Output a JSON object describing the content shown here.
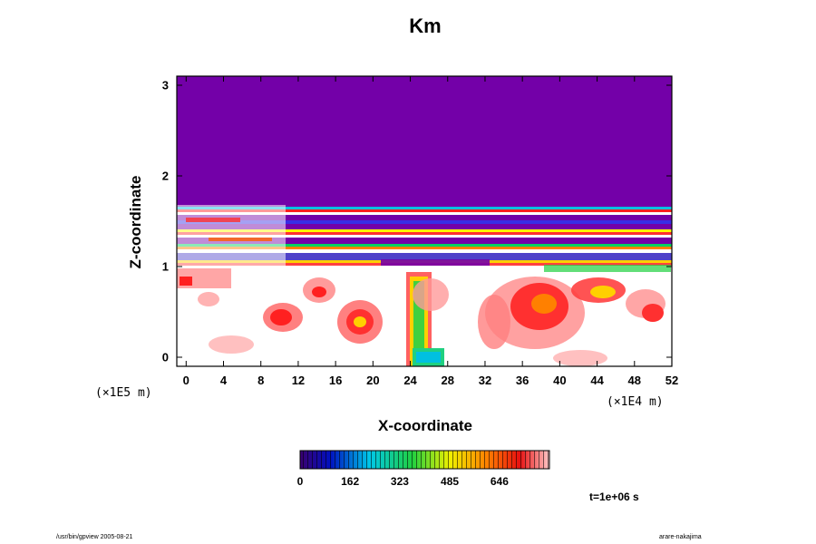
{
  "chart_data": {
    "type": "heatmap",
    "title": "Km",
    "xlabel": "X-coordinate",
    "ylabel": "Z-coordinate",
    "x_ticks": [
      "0",
      "4",
      "8",
      "12",
      "16",
      "20",
      "24",
      "28",
      "32",
      "36",
      "40",
      "44",
      "48",
      "52"
    ],
    "y_ticks": [
      "0",
      "1",
      "2",
      "3"
    ],
    "xlim": [
      -1,
      52
    ],
    "ylim": [
      -0.1,
      3.1
    ],
    "x_scale_note": "(×1E4 m)",
    "y_scale_note": "(×1E5 m)",
    "colorbar": {
      "ticks": [
        "0",
        "162",
        "323",
        "485",
        "646"
      ],
      "tick_values": [
        0,
        162,
        323,
        485,
        646
      ],
      "range": [
        0,
        808
      ],
      "colormap": "rainbow (purple-blue-cyan-green-yellow-red-pink)"
    },
    "background_color": "#7300a8",
    "time_label": "t=1e+06 s"
  },
  "footer": {
    "left": "/usr/bin/gpview 2005-08-21",
    "right": "arare-nakajima"
  }
}
